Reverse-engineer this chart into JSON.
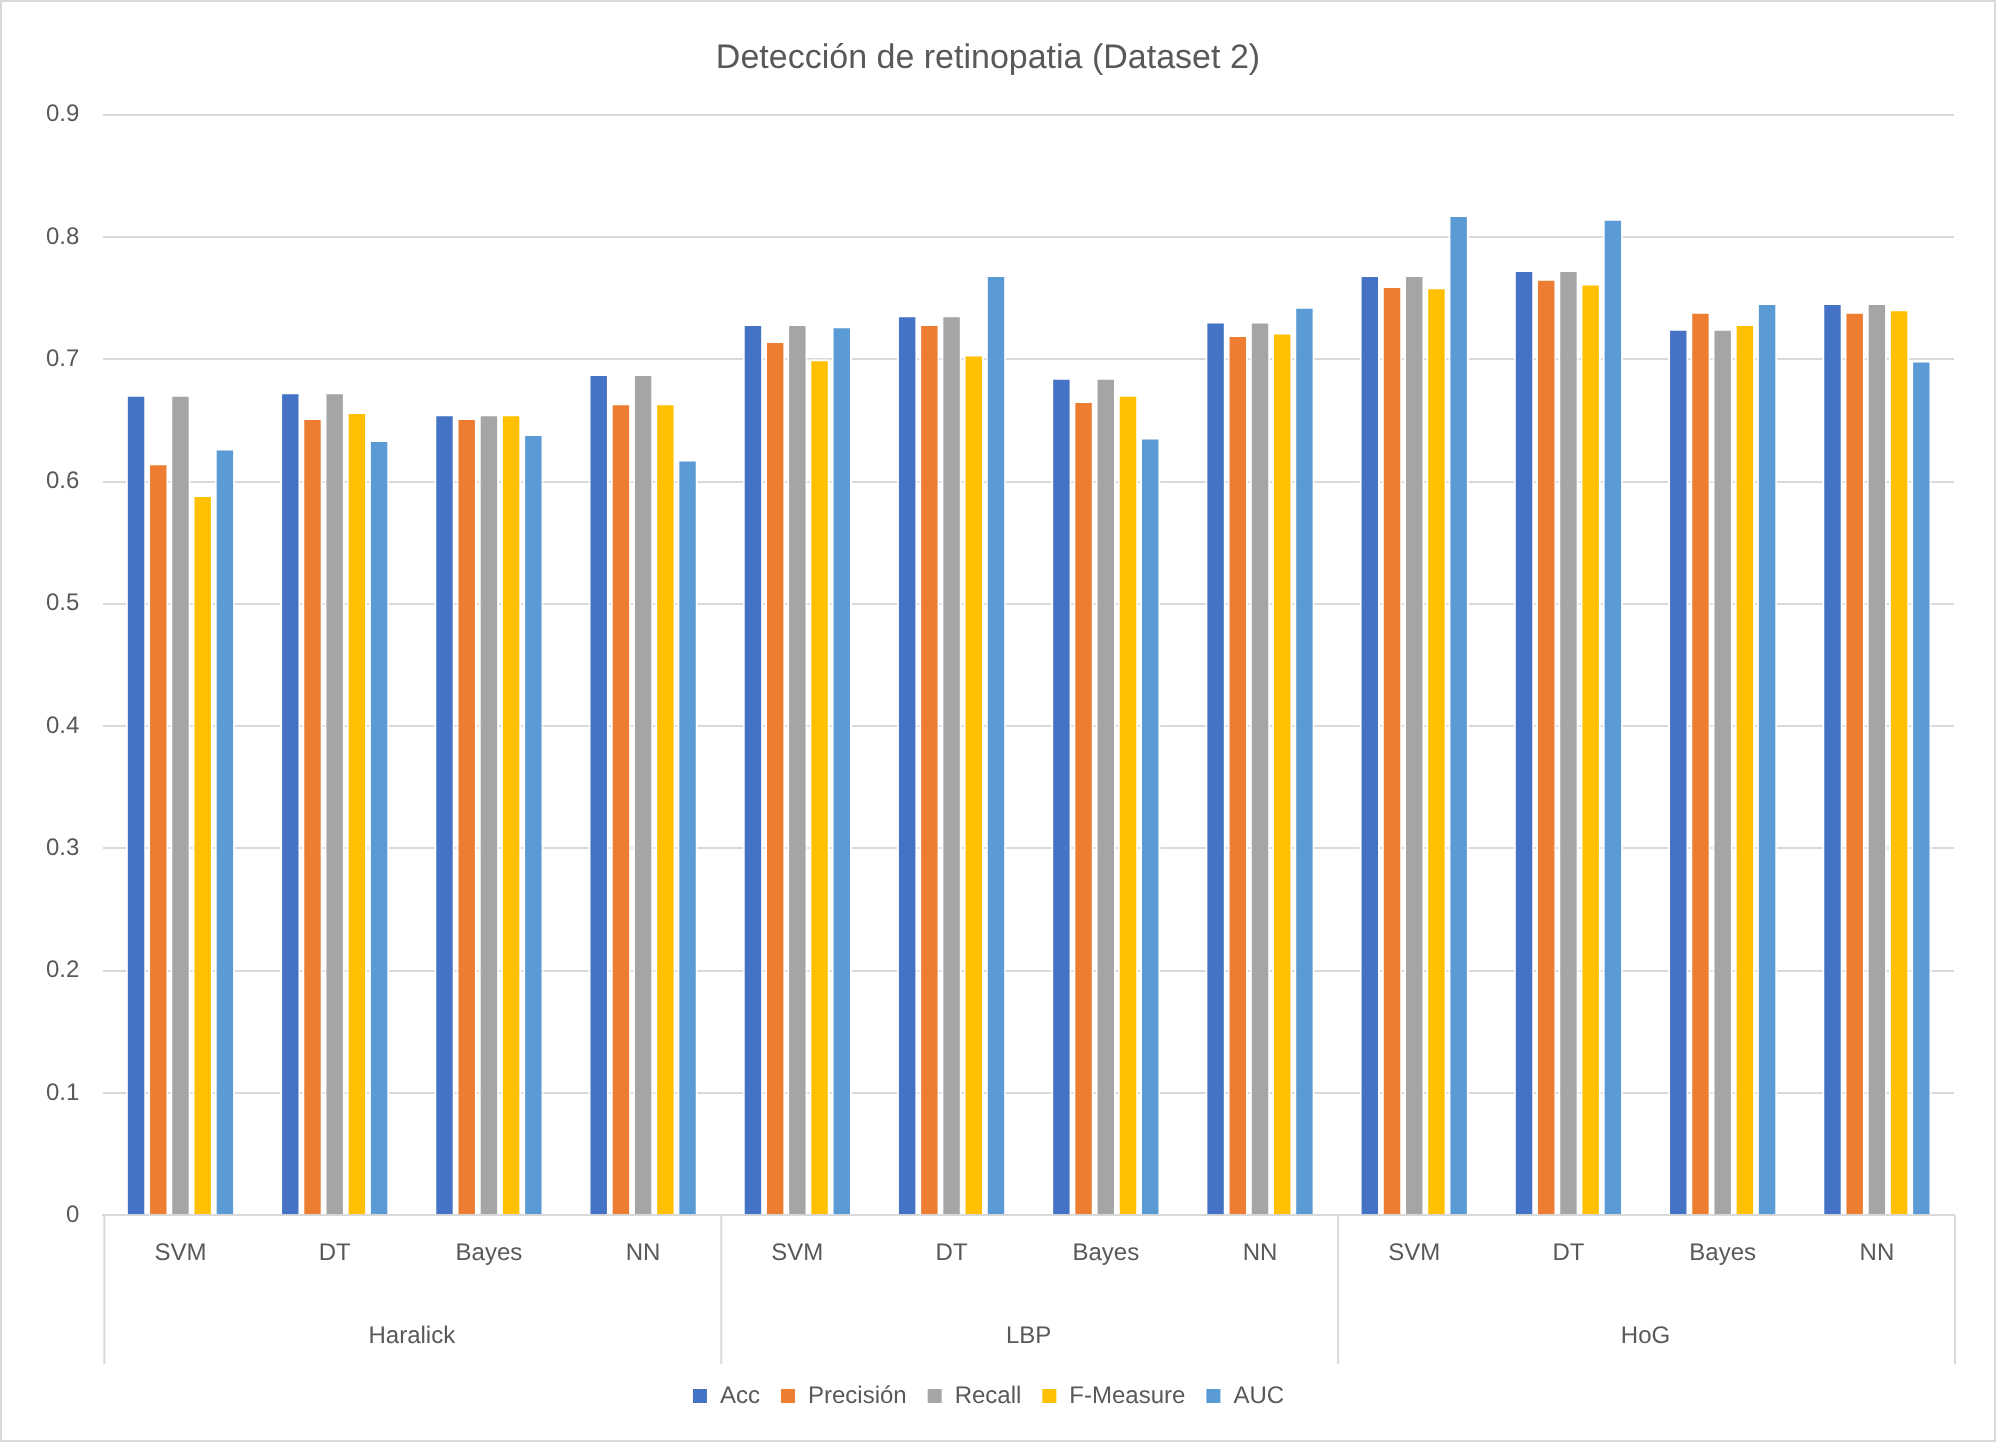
{
  "chart_data": {
    "type": "bar",
    "title": "Detección de retinopatia (Dataset 2)",
    "categories": [
      "SVM",
      "DT",
      "Bayes",
      "NN",
      "SVM",
      "DT",
      "Bayes",
      "NN",
      "SVM",
      "DT",
      "Bayes",
      "NN"
    ],
    "annotations": [
      "Haralick",
      "LBP",
      "HoG"
    ],
    "series": [
      {
        "name": "Acc",
        "color": "#4472c4",
        "values": [
          0.671,
          0.673,
          0.655,
          0.688,
          0.729,
          0.736,
          0.685,
          0.731,
          0.769,
          0.773,
          0.725,
          0.746
        ]
      },
      {
        "name": "Precisión",
        "color": "#ed7d31",
        "values": [
          0.615,
          0.652,
          0.652,
          0.664,
          0.715,
          0.729,
          0.666,
          0.72,
          0.76,
          0.766,
          0.739,
          0.739
        ]
      },
      {
        "name": "Recall",
        "color": "#a5a5a5",
        "values": [
          0.671,
          0.673,
          0.655,
          0.688,
          0.729,
          0.736,
          0.685,
          0.731,
          0.769,
          0.773,
          0.725,
          0.746
        ]
      },
      {
        "name": "F-Measure",
        "color": "#ffc000",
        "values": [
          0.589,
          0.657,
          0.655,
          0.664,
          0.7,
          0.704,
          0.671,
          0.722,
          0.759,
          0.762,
          0.729,
          0.741
        ]
      },
      {
        "name": "AUC",
        "color": "#5b9bd5",
        "values": [
          0.627,
          0.634,
          0.639,
          0.618,
          0.727,
          0.769,
          0.636,
          0.743,
          0.818,
          0.815,
          0.746,
          0.699
        ]
      }
    ],
    "ylim": [
      0,
      0.9
    ],
    "yticks": [
      0,
      0.1,
      0.2,
      0.3,
      0.4,
      0.5,
      0.6,
      0.7,
      0.8,
      0.9
    ],
    "grid": "y",
    "legend": "bottom"
  }
}
